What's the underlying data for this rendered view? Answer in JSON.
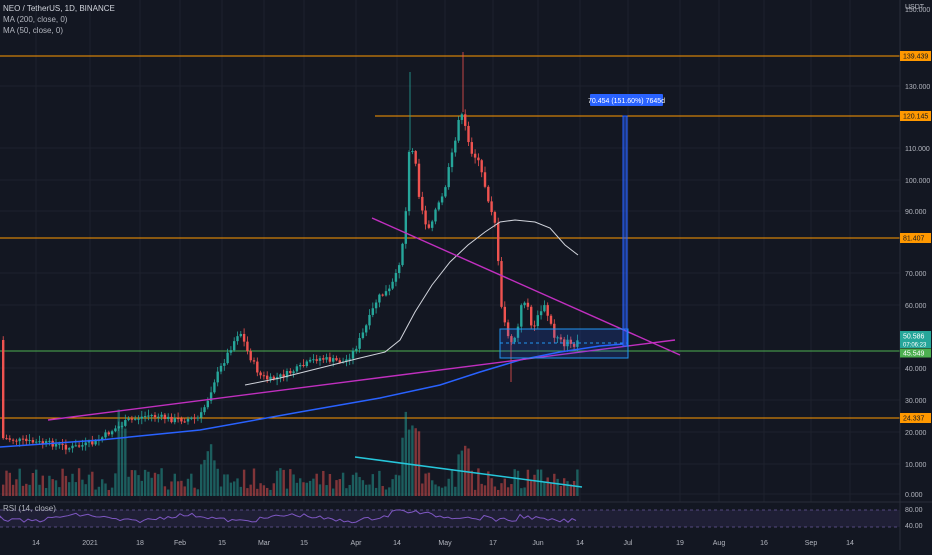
{
  "header": {
    "symbol": "NEO / TetherUS, 1D, BINANCE",
    "ma200": "MA (200, close, 0)",
    "ma50": "MA (50, close, 0)",
    "currency": "USDT"
  },
  "rsi_label": "RSI (14, close)",
  "colors": {
    "background": "#131722",
    "up": "#26a69a",
    "down": "#ef5350",
    "hline": "#ff9800",
    "ma200": "#2962ff",
    "ma50": "#d1d4dc",
    "trend": "#c02fbf",
    "volume_trend": "#26c6da",
    "rsi": "#7e57c2"
  },
  "price_axis": {
    "ticks": [
      "150.000",
      "130.000",
      "110.000",
      "100.000",
      "90.000",
      "70.000",
      "60.000",
      "40.000",
      "30.000",
      "20.000",
      "10.000",
      "0.000"
    ],
    "labels": [
      {
        "text": "139.439",
        "style": "orange"
      },
      {
        "text": "120.145",
        "style": "orange"
      },
      {
        "text": "81.407",
        "style": "orange"
      },
      {
        "text": "50.586",
        "style": "teal"
      },
      {
        "text": "07:06:23",
        "style": "teal_small"
      },
      {
        "text": "45.549",
        "style": "green"
      },
      {
        "text": "24.337",
        "style": "orange"
      }
    ]
  },
  "rsi_axis": [
    "80.00",
    "40.00"
  ],
  "measure_label": "70.454 (151.60%) 7645d",
  "time_axis": [
    "14",
    "2021",
    "18",
    "Feb",
    "15",
    "Mar",
    "15",
    "Apr",
    "14",
    "May",
    "17",
    "Jun",
    "14",
    "Jul",
    "19",
    "Aug",
    "16",
    "Sep",
    "14"
  ]
}
